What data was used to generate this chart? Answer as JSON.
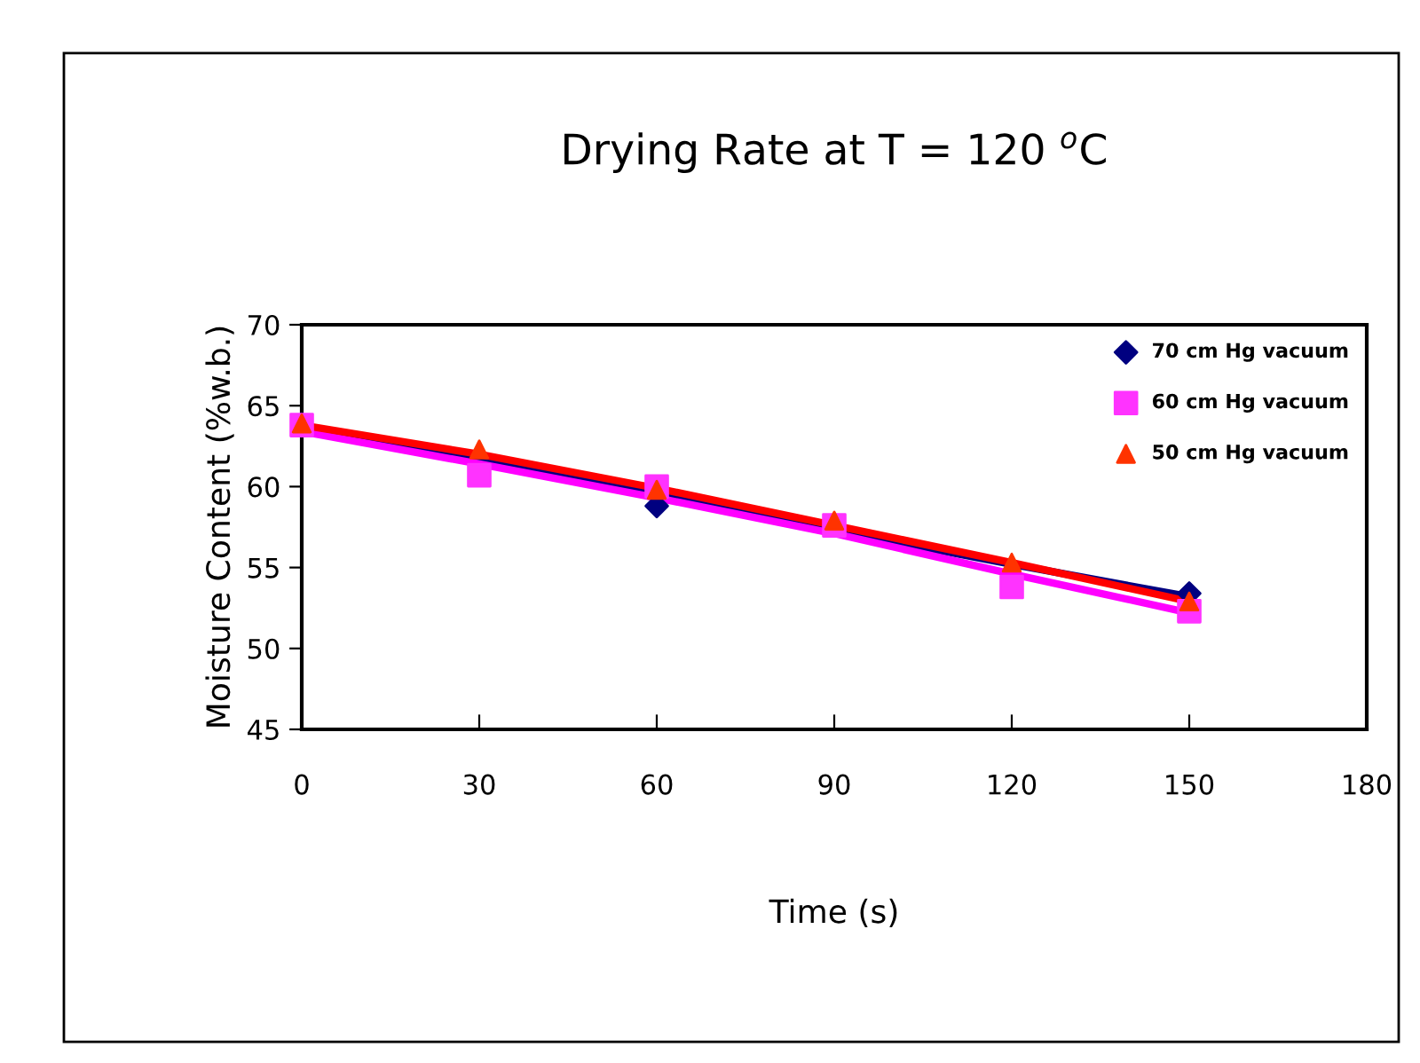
{
  "chart_data": {
    "type": "scatter",
    "title": "Drying Rate at T = 120 $^{o}$C",
    "xlabel": "Time (s)",
    "ylabel": "Moisture Content (%w.b.)",
    "x": [
      0,
      30,
      60,
      90,
      120,
      150
    ],
    "series": [
      {
        "name": "70 cm Hg vacuum",
        "color": "#000080",
        "marker": "diamond",
        "values": [
          null,
          null,
          58.8,
          null,
          null,
          53.4
        ]
      },
      {
        "name": "60 cm Hg vacuum",
        "color": "#ff33ff",
        "marker": "square",
        "values": [
          63.8,
          60.7,
          60.0,
          57.6,
          53.8,
          52.3
        ]
      },
      {
        "name": "50 cm Hg vacuum",
        "color": "#ff3300",
        "marker": "triangle",
        "values": [
          63.9,
          62.3,
          59.8,
          57.9,
          55.3,
          52.9
        ]
      },
      {
        "type": "line",
        "color": "#000080",
        "x": [
          0,
          30,
          60,
          90,
          120,
          150
        ],
        "values": [
          63.5,
          61.6,
          59.5,
          57.3,
          55.2,
          53.2
        ]
      },
      {
        "type": "line",
        "color": "#ff00ff",
        "x": [
          0,
          30,
          60,
          90,
          120,
          150
        ],
        "values": [
          63.4,
          61.4,
          59.3,
          57.1,
          54.6,
          52.2
        ]
      },
      {
        "type": "line",
        "color": "#ff0000",
        "x": [
          0,
          30,
          60,
          90,
          120,
          150
        ],
        "values": [
          63.8,
          62.0,
          59.9,
          57.6,
          55.3,
          52.9
        ]
      }
    ],
    "xlim": [
      0,
      180
    ],
    "xticks": [
      0,
      30,
      60,
      90,
      120,
      150,
      180
    ],
    "ylim": [
      45,
      70
    ],
    "yticks": [
      45,
      50,
      55,
      60,
      65,
      70
    ],
    "grid": false,
    "legend": "top right"
  }
}
